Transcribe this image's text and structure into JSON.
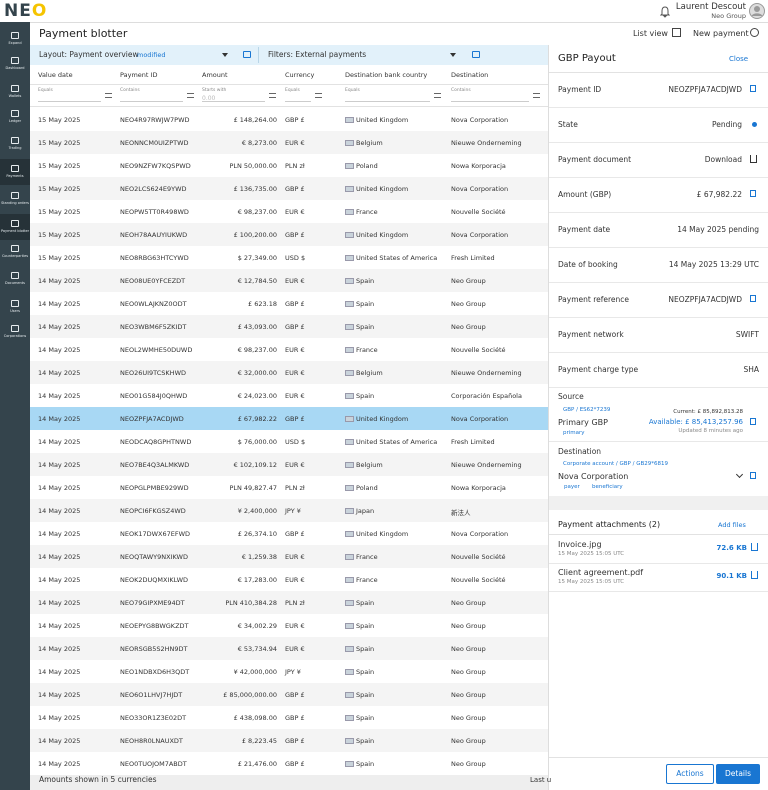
{
  "header": {
    "logo": "NEO",
    "user_name": "Laurent Descout",
    "user_org": "Neo Group"
  },
  "sidebar": {
    "items": [
      "Expand",
      "Dashboard",
      "Wallets",
      "Ledger",
      "Trading",
      "Payments",
      "Standing orders",
      "Payment blotter",
      "Counterparties",
      "Documents",
      "Users",
      "Corporations"
    ]
  },
  "page": {
    "title": "Payment blotter",
    "list_view": "List view",
    "new_payment": "New payment"
  },
  "toolbar": {
    "layout": "Layout: Payment overview",
    "modified": "modified",
    "filters": "Filters: External payments"
  },
  "table": {
    "columns": [
      "Value date",
      "Payment ID",
      "Amount",
      "Currency",
      "Destination bank country",
      "Destination"
    ],
    "filters": [
      "Equals",
      "Contains",
      "Starts with",
      "Equals",
      "Equals",
      "Contains"
    ],
    "amount_placeholder": "0.00",
    "selected_row": 13,
    "rows": [
      [
        "15 May 2025",
        "NEO4R97RWJW7PWD",
        "£ 148,264.00",
        "GBP £",
        "United Kingdom",
        "Nova Corporation"
      ],
      [
        "15 May 2025",
        "NEONNCM0UIZPTWD",
        "€ 8,273.00",
        "EUR €",
        "Belgium",
        "Nieuwe Onderneming"
      ],
      [
        "15 May 2025",
        "NEO9NZFW7KQSPWD",
        "PLN 50,000.00",
        "PLN zł",
        "Poland",
        "Nowa Korporacja"
      ],
      [
        "15 May 2025",
        "NEO2LCS624E9YWD",
        "£ 136,735.00",
        "GBP £",
        "United Kingdom",
        "Nova Corporation"
      ],
      [
        "15 May 2025",
        "NEOPW5TT0R498WD",
        "€ 98,237.00",
        "EUR €",
        "France",
        "Nouvelle Société"
      ],
      [
        "15 May 2025",
        "NEOH78AAUYIUKWD",
        "£ 100,200.00",
        "GBP £",
        "United Kingdom",
        "Nova Corporation"
      ],
      [
        "15 May 2025",
        "NEO8RBG63HTCYWD",
        "$ 27,349.00",
        "USD $",
        "United States of America",
        "Fresh Limited"
      ],
      [
        "14 May 2025",
        "NEO08UE0YFCEZDT",
        "€ 12,784.50",
        "EUR €",
        "Spain",
        "Neo Group"
      ],
      [
        "14 May 2025",
        "NEO0WLAJKNZ0ODT",
        "£ 623.18",
        "GBP £",
        "Spain",
        "Neo Group"
      ],
      [
        "14 May 2025",
        "NEO3WBM6F5ZKIDT",
        "£ 43,093.00",
        "GBP £",
        "Spain",
        "Neo Group"
      ],
      [
        "14 May 2025",
        "NEOL2WMHE50DUWD",
        "€ 98,237.00",
        "EUR €",
        "France",
        "Nouvelle Société"
      ],
      [
        "14 May 2025",
        "NEO26UI9TCSKHWD",
        "€ 32,000.00",
        "EUR €",
        "Belgium",
        "Nieuwe Onderneming"
      ],
      [
        "14 May 2025",
        "NEO01G584J0QHWD",
        "€ 24,023.00",
        "EUR €",
        "Spain",
        "Corporación Española"
      ],
      [
        "14 May 2025",
        "NEOZPFJA7ACDJWD",
        "£ 67,982.22",
        "GBP £",
        "United Kingdom",
        "Nova Corporation"
      ],
      [
        "14 May 2025",
        "NEODCAQ8GPHTNWD",
        "$ 76,000.00",
        "USD $",
        "United States of America",
        "Fresh Limited"
      ],
      [
        "14 May 2025",
        "NEO7BE4Q3ALMKWD",
        "€ 102,109.12",
        "EUR €",
        "Belgium",
        "Nieuwe Onderneming"
      ],
      [
        "14 May 2025",
        "NEOPGLPMBE929WD",
        "PLN 49,827.47",
        "PLN zł",
        "Poland",
        "Nowa Korporacja"
      ],
      [
        "14 May 2025",
        "NEOPCI6FKGSZ4WD",
        "¥ 2,400,000",
        "JPY ¥",
        "Japan",
        "新法人"
      ],
      [
        "14 May 2025",
        "NEOK17DWX67EFWD",
        "£ 26,374.10",
        "GBP £",
        "United Kingdom",
        "Nova Corporation"
      ],
      [
        "14 May 2025",
        "NEOQTAWY9NXIKWD",
        "€ 1,259.38",
        "EUR €",
        "France",
        "Nouvelle Société"
      ],
      [
        "14 May 2025",
        "NEOK2DUQMXIKLWD",
        "€ 17,283.00",
        "EUR €",
        "France",
        "Nouvelle Société"
      ],
      [
        "14 May 2025",
        "NEO79GIPXME94DT",
        "PLN 410,384.28",
        "PLN zł",
        "Spain",
        "Neo Group"
      ],
      [
        "14 May 2025",
        "NEOEPYG8BWGKZDT",
        "€ 34,002.29",
        "EUR €",
        "Spain",
        "Neo Group"
      ],
      [
        "14 May 2025",
        "NEORSGB5S2HN9DT",
        "€ 53,734.94",
        "EUR €",
        "Spain",
        "Neo Group"
      ],
      [
        "14 May 2025",
        "NEO1NDBXD6H3QDT",
        "¥ 42,000,000",
        "JPY ¥",
        "Spain",
        "Neo Group"
      ],
      [
        "14 May 2025",
        "NEO6O1LHVJ7HJDT",
        "£ 85,000,000.00",
        "GBP £",
        "Spain",
        "Neo Group"
      ],
      [
        "14 May 2025",
        "NEO33OR1Z3E02DT",
        "£ 438,098.00",
        "GBP £",
        "Spain",
        "Neo Group"
      ],
      [
        "14 May 2025",
        "NEOH8R0LNAUXDT",
        "£ 8,223.45",
        "GBP £",
        "Spain",
        "Neo Group"
      ],
      [
        "14 May 2025",
        "NEO0TUOJOM7ABDT",
        "£ 21,476.00",
        "GBP £",
        "Spain",
        "Neo Group"
      ]
    ]
  },
  "footer": {
    "note": "Amounts shown in 5 currencies",
    "last_updated": "Last u"
  },
  "panel": {
    "title": "GBP Payout",
    "close": "Close",
    "fields": [
      {
        "label": "Payment ID",
        "value": "NEOZPFJA7ACDJWD"
      },
      {
        "label": "State",
        "value": "Pending"
      },
      {
        "label": "Payment document",
        "value": "Download"
      },
      {
        "label": "Amount (GBP)",
        "value": "£ 67,982.22"
      },
      {
        "label": "Payment date",
        "value": "14 May 2025 pending"
      },
      {
        "label": "Date of booking",
        "value": "14 May 2025 13:29 UTC"
      },
      {
        "label": "Payment reference",
        "value": "NEOZPFJA7ACDJWD"
      },
      {
        "label": "Payment network",
        "value": "SWIFT"
      },
      {
        "label": "Payment charge type",
        "value": "SHA"
      }
    ],
    "source": {
      "heading": "Source",
      "account": "GBP / ES62*7239",
      "name": "Primary GBP",
      "tag": "primary",
      "current": "Current: £ 85,892,813.28",
      "available": "Available: £ 85,413,257.96",
      "updated": "Updated 8 minutes ago"
    },
    "destination": {
      "heading": "Destination",
      "account": "Corporate account / GBP / GB29*6819",
      "name": "Nova Corporation",
      "tags": [
        "payer",
        "beneficiary"
      ]
    },
    "attachments": {
      "heading": "Payment attachments (2)",
      "add": "Add files",
      "files": [
        {
          "name": "Invoice.jpg",
          "date": "15 May 2025 15:05 UTC",
          "size": "72.6 KB"
        },
        {
          "name": "Client agreement.pdf",
          "date": "15 May 2025 15:05 UTC",
          "size": "90.1 KB"
        }
      ]
    },
    "actions": "Actions",
    "details": "Details"
  }
}
